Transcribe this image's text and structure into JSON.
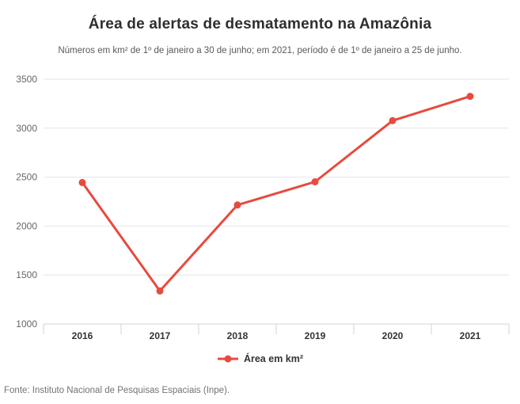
{
  "header": {
    "title": "Área de alertas de desmatamento na Amazônia",
    "subtitle": "Números em km² de 1º de janeiro a 30 de junho; em 2021, período é de 1º de janeiro a 25 de junho."
  },
  "chart_data": {
    "type": "line",
    "categories": [
      "2016",
      "2017",
      "2018",
      "2019",
      "2020",
      "2021"
    ],
    "series": [
      {
        "name": "Área em km²",
        "values": [
          2445,
          1337,
          2215,
          2452,
          3077,
          3325
        ]
      }
    ],
    "ylim": [
      1000,
      3500
    ],
    "yticks": [
      1000,
      1500,
      2000,
      2500,
      3000,
      3500
    ],
    "grid": true,
    "legend_position": "bottom",
    "xlabel": "",
    "ylabel": "",
    "colors": {
      "line": "#e84a3e",
      "gridline": "#e6e6e6",
      "axis": "#ccd6de",
      "ytick_label": "#666666",
      "xtick_label": "#333333"
    }
  },
  "legend": {
    "label": "Área em km²"
  },
  "footer": {
    "source": "Fonte: Instituto Nacional de Pesquisas Espaciais (Inpe)."
  }
}
